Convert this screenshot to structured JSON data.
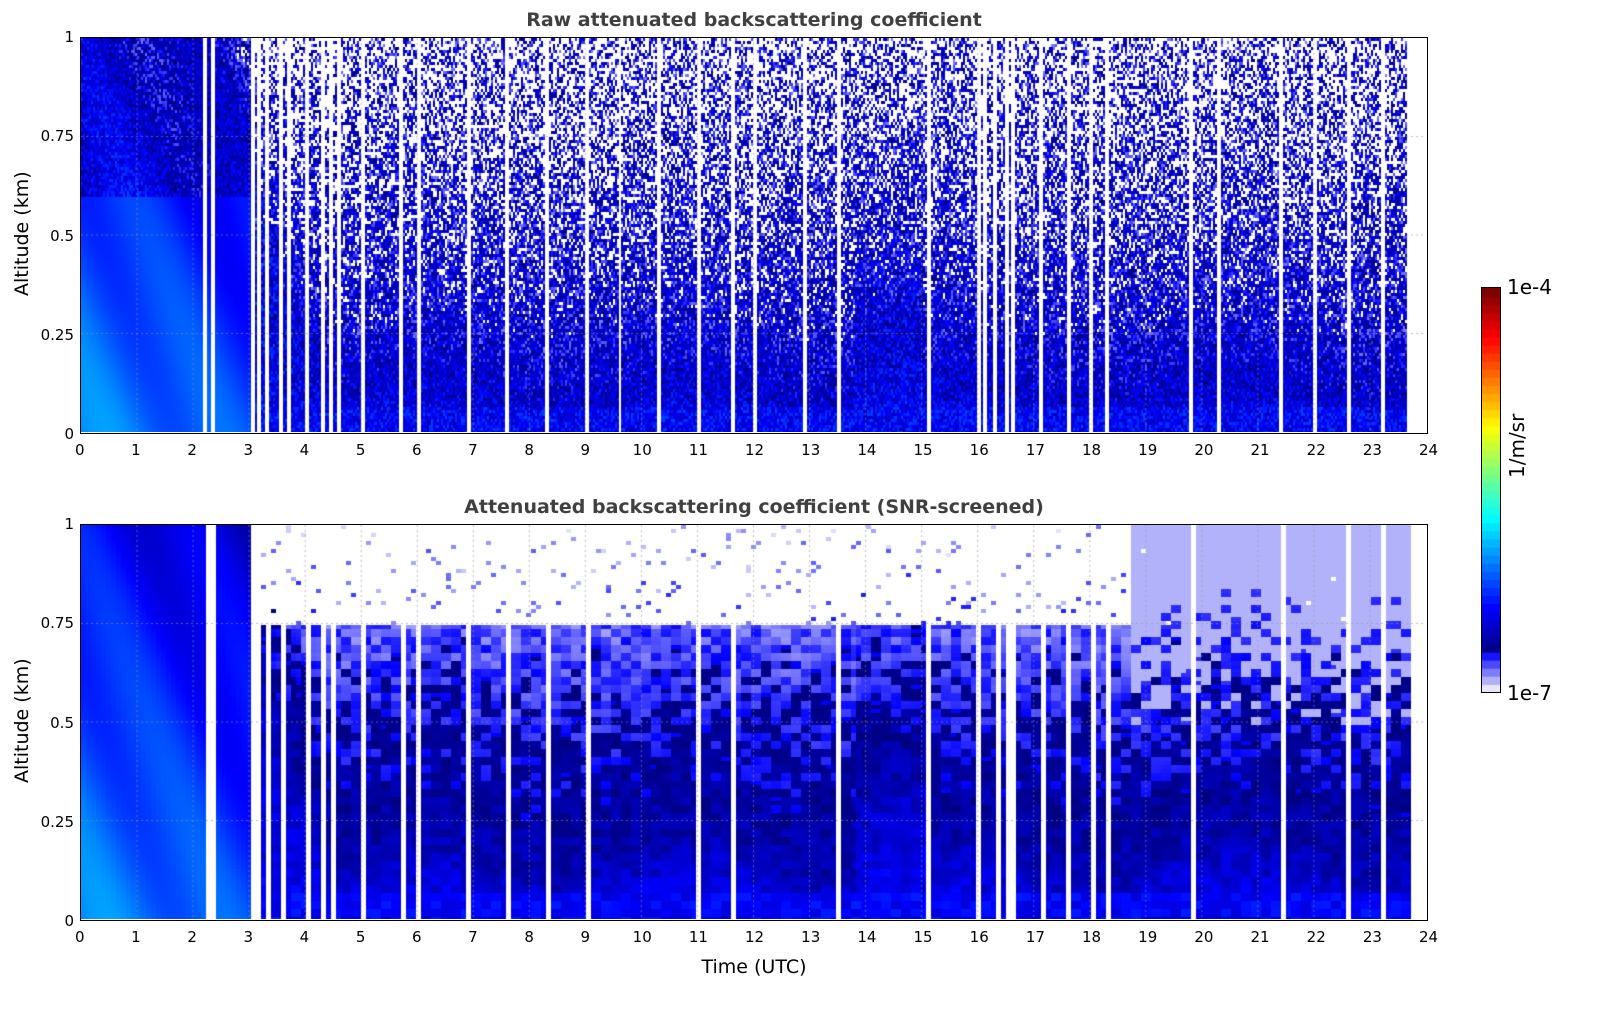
{
  "chart_data": [
    {
      "type": "heatmap",
      "title": "Raw attenuated backscattering coefficient",
      "xlabel": "",
      "ylabel": "Altitude (km)",
      "xlim": [
        0,
        24
      ],
      "ylim": [
        0,
        1
      ],
      "xticks": [
        0,
        1,
        2,
        3,
        4,
        5,
        6,
        7,
        8,
        9,
        10,
        11,
        12,
        13,
        14,
        15,
        16,
        17,
        18,
        19,
        20,
        21,
        22,
        23,
        24
      ],
      "yticks": [
        0,
        0.25,
        0.5,
        0.75,
        1
      ],
      "ytick_labels": [
        "0",
        "0.25",
        "0.5",
        "0.75",
        "1"
      ],
      "grid": true,
      "screened": false,
      "data_end_hour": 23.65
    },
    {
      "type": "heatmap",
      "title": "Attenuated backscattering coefficient (SNR-screened)",
      "xlabel": "Time (UTC)",
      "ylabel": "Altitude (km)",
      "xlim": [
        0,
        24
      ],
      "ylim": [
        0,
        1
      ],
      "xticks": [
        0,
        1,
        2,
        3,
        4,
        5,
        6,
        7,
        8,
        9,
        10,
        11,
        12,
        13,
        14,
        15,
        16,
        17,
        18,
        19,
        20,
        21,
        22,
        23,
        24
      ],
      "yticks": [
        0,
        0.25,
        0.5,
        0.75,
        1
      ],
      "ytick_labels": [
        "0",
        "0.25",
        "0.5",
        "0.75",
        "1"
      ],
      "grid": true,
      "screened": true,
      "data_end_hour": 23.65
    }
  ],
  "data_gap_hours": [
    2.2,
    2.33,
    3.05,
    3.15,
    3.3,
    3.55,
    3.7,
    4.0,
    4.3,
    4.45,
    4.6,
    5.0,
    5.7,
    6.0,
    6.9,
    7.6,
    8.3,
    9.0,
    9.6,
    10.3,
    11.0,
    11.6,
    12.0,
    12.9,
    13.5,
    15.1,
    16.0,
    16.1,
    16.3,
    16.5,
    16.6,
    17.1,
    17.6,
    18.0,
    18.3,
    19.8,
    20.3,
    21.4,
    22.0,
    22.6,
    23.2
  ],
  "colorbar": {
    "label": "1/m/sr",
    "min_label": "1e-7",
    "max_label": "1e-4",
    "min": 1e-07,
    "max": 0.0001,
    "scale": "log"
  }
}
